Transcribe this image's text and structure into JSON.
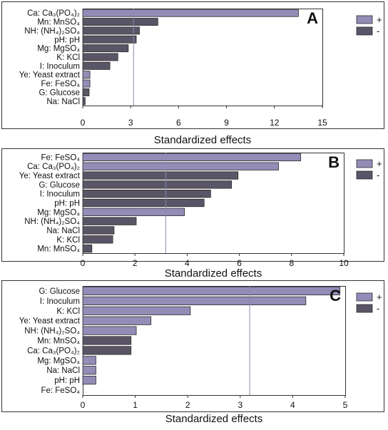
{
  "colors": {
    "positive": "#938cb7",
    "negative": "#5a5566",
    "bar_stroke": "#2b2b2b",
    "frame": "#333333",
    "reference_line": "#8a88b0"
  },
  "chart_data": [
    {
      "type": "bar",
      "orientation": "horizontal",
      "panel_label": "A",
      "xlabel": "Standardized effects",
      "xlim": [
        0,
        15
      ],
      "xticks": [
        "0",
        "3",
        "6",
        "9",
        "12",
        "15"
      ],
      "reference_line": 3.18,
      "legend_placement": "right",
      "legend": [
        {
          "label": "+",
          "sign": "positive"
        },
        {
          "label": "-",
          "sign": "negative"
        }
      ],
      "categories": [
        "Ca: Ca₃(PO₄)₂",
        "Mn: MnSO₄",
        "NH: (NH₄)₂SO₄",
        "pH: pH",
        "Mg: MgSO₄",
        "K: KCl",
        "I: Inoculum",
        "Ye: Yeast extract",
        "Fe: FeSO₄",
        "G: Glucose",
        "Na: NaCl"
      ],
      "values": [
        13.5,
        4.7,
        3.55,
        3.35,
        2.85,
        2.2,
        1.7,
        0.45,
        0.45,
        0.4,
        0.15
      ],
      "signs": [
        "positive",
        "negative",
        "negative",
        "negative",
        "negative",
        "negative",
        "negative",
        "positive",
        "positive",
        "negative",
        "negative"
      ]
    },
    {
      "type": "bar",
      "orientation": "horizontal",
      "panel_label": "B",
      "xlabel": "Standardized effects",
      "xlim": [
        0,
        10
      ],
      "xticks": [
        "0",
        "2",
        "4",
        "6",
        "8",
        "10"
      ],
      "reference_line": 3.18,
      "legend_placement": "right",
      "legend": [
        {
          "label": "+",
          "sign": "positive"
        },
        {
          "label": "-",
          "sign": "negative"
        }
      ],
      "categories": [
        "Fe: FeSO₄",
        "Ca: Ca₃(PO₄)₂",
        "Ye: Yeast extract",
        "G: Glucose",
        "I: Inoculum",
        "pH: pH",
        "Mg: MgSO₄",
        "NH: (NH₄)₂SO₄",
        "Na: NaCl",
        "K: KCl",
        "Mn: MnSO₄"
      ],
      "values": [
        8.35,
        7.5,
        5.95,
        5.7,
        4.9,
        4.65,
        3.9,
        2.05,
        1.2,
        1.15,
        0.35
      ],
      "signs": [
        "positive",
        "positive",
        "negative",
        "negative",
        "negative",
        "negative",
        "positive",
        "negative",
        "negative",
        "negative",
        "negative"
      ]
    },
    {
      "type": "bar",
      "orientation": "horizontal",
      "panel_label": "C",
      "xlabel": "Standardized effects",
      "xlim": [
        0,
        5
      ],
      "xticks": [
        "0",
        "1",
        "2",
        "3",
        "4",
        "5"
      ],
      "reference_line": 3.18,
      "legend_placement": "right",
      "legend": [
        {
          "label": "+",
          "sign": "positive"
        },
        {
          "label": "-",
          "sign": "negative"
        }
      ],
      "categories": [
        "G: Glucose",
        "I: Inoculum",
        "K: KCl",
        "Ye: Yeast extract",
        "NH: (NH₄)₂SO₄",
        "Mn: MnSO₄",
        "Ca: Ca₃(PO₄)₂",
        "Mg: MgSO₄",
        "Na: NaCl",
        "pH: pH",
        "Fe: FeSO₄"
      ],
      "values": [
        4.9,
        4.25,
        2.05,
        1.3,
        1.02,
        0.92,
        0.92,
        0.25,
        0.25,
        0.25,
        0.0
      ],
      "signs": [
        "positive",
        "positive",
        "positive",
        "positive",
        "positive",
        "negative",
        "negative",
        "positive",
        "positive",
        "positive",
        "positive"
      ]
    }
  ]
}
